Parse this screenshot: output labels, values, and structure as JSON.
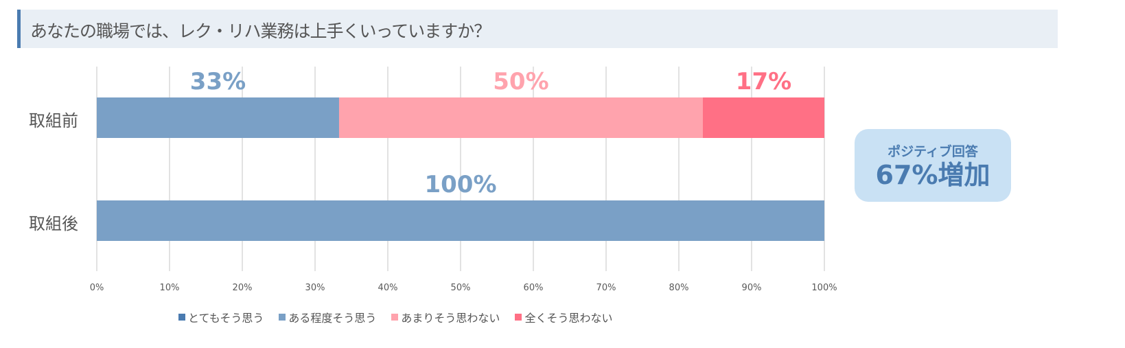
{
  "chart_data": {
    "type": "bar",
    "orientation": "horizontal-stacked-100",
    "title": "あなたの職場では、レク・リハ業務は上手くいっていますか？",
    "categories": [
      "取組前",
      "取組後"
    ],
    "series": [
      {
        "name": "とてもそう思う",
        "color": "#4a7bb0",
        "values": [
          0,
          0
        ]
      },
      {
        "name": "ある程度そう思う",
        "color": "#7aa0c6",
        "values": [
          33.3,
          100
        ]
      },
      {
        "name": "あまりそう思わない",
        "color": "#ffa3ad",
        "values": [
          50,
          0
        ]
      },
      {
        "name": "全くそう思わない",
        "color": "#ff7085",
        "values": [
          16.7,
          0
        ]
      }
    ],
    "data_labels": [
      {
        "category": "取組前",
        "series": 1,
        "text": "33%"
      },
      {
        "category": "取組前",
        "series": 2,
        "text": "50%"
      },
      {
        "category": "取組前",
        "series": 3,
        "text": "17%"
      },
      {
        "category": "取組後",
        "series": 1,
        "text": "100%"
      }
    ],
    "xlim": [
      0,
      100
    ],
    "xticks": [
      "0%",
      "10%",
      "20%",
      "30%",
      "40%",
      "50%",
      "60%",
      "70%",
      "80%",
      "90%",
      "100%"
    ],
    "grid": true,
    "legend": "bottom"
  },
  "callout": {
    "line1": "ポジティブ回答",
    "line2": "67%増加"
  }
}
